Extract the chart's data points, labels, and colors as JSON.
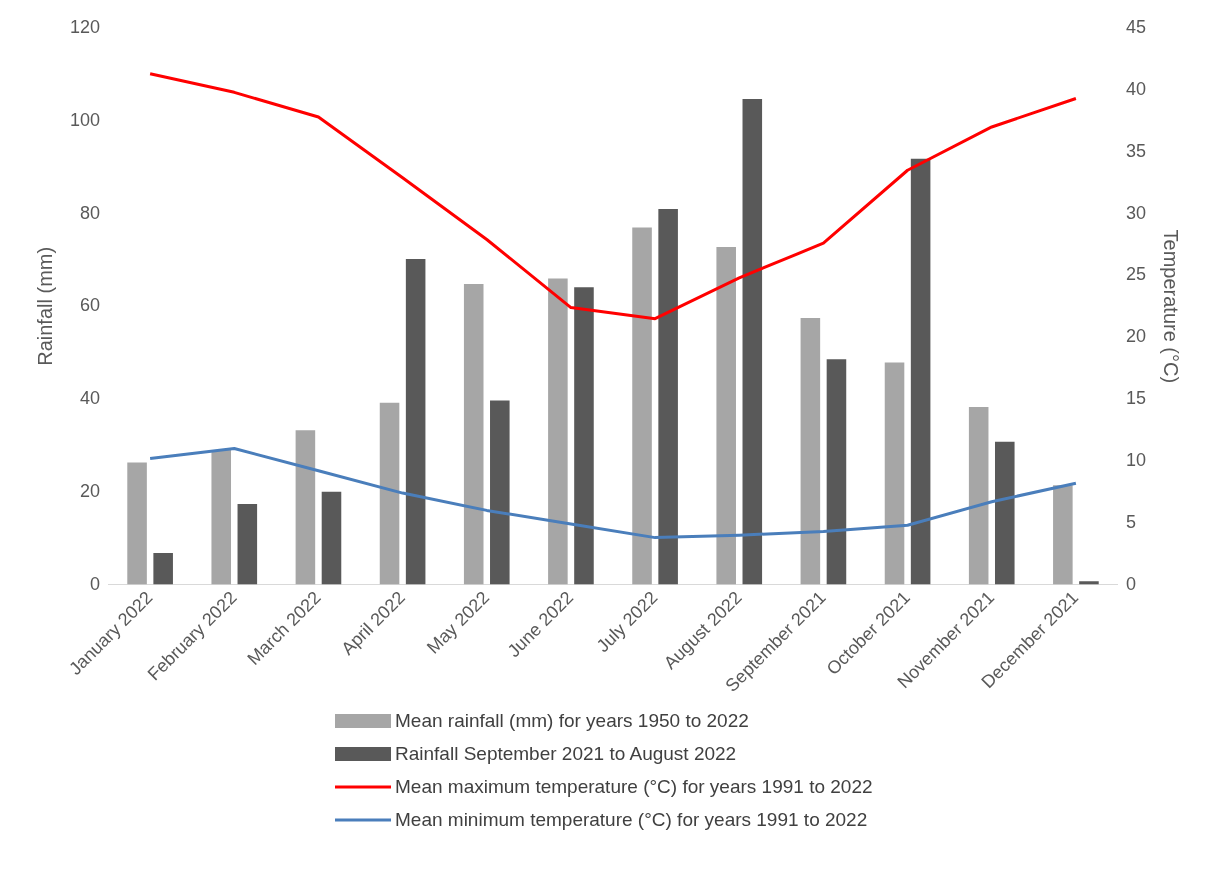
{
  "chart_data": {
    "type": "bar",
    "categories": [
      "January 2022",
      "February 2022",
      "March 2022",
      "April 2022",
      "May 2022",
      "June 2022",
      "July 2022",
      "August 2022",
      "September 2021",
      "October 2021",
      "November 2021",
      "December 2021"
    ],
    "ylabel": "Rainfall (mm)",
    "y2label": "Temperature (°C)",
    "ylim": [
      0,
      120
    ],
    "yticks": [
      0,
      20,
      40,
      60,
      80,
      100,
      120
    ],
    "y2lim": [
      0,
      45
    ],
    "y2ticks": [
      0,
      5,
      10,
      15,
      20,
      25,
      30,
      35,
      40,
      45
    ],
    "legend": "bottom",
    "series": [
      {
        "name": "Mean rainfall (mm) for years 1950 to 2022",
        "color": "#a6a6a6",
        "values": [
          26.3,
          29,
          33.3,
          39.2,
          64.8,
          66,
          77,
          72.8,
          57.5,
          47.9,
          38.3,
          21.4
        ]
      },
      {
        "name": "Rainfall September 2021 to August 2022",
        "color": "#595959",
        "values": [
          6.8,
          17.4,
          20,
          70.2,
          39.7,
          64.1,
          81,
          104.7,
          48.6,
          91.8,
          30.8,
          0.7
        ]
      },
      {
        "name": "Mean maximum temperature (°C) for years 1991 to 2022",
        "type": "line",
        "axis": "y2",
        "color": "#ff0000",
        "values": [
          41.3,
          39.8,
          37.8,
          32.9,
          27.9,
          22.4,
          21.5,
          24.8,
          27.6,
          33.5,
          37,
          39.3
        ]
      },
      {
        "name": "Mean minimum temperature (°C) for years 1991 to 2022",
        "type": "line",
        "axis": "y2",
        "color": "#4a7ebb",
        "values": [
          10.2,
          11,
          9.2,
          7.4,
          6,
          4.9,
          3.8,
          4,
          4.3,
          4.8,
          6.7,
          8.2
        ]
      }
    ]
  }
}
